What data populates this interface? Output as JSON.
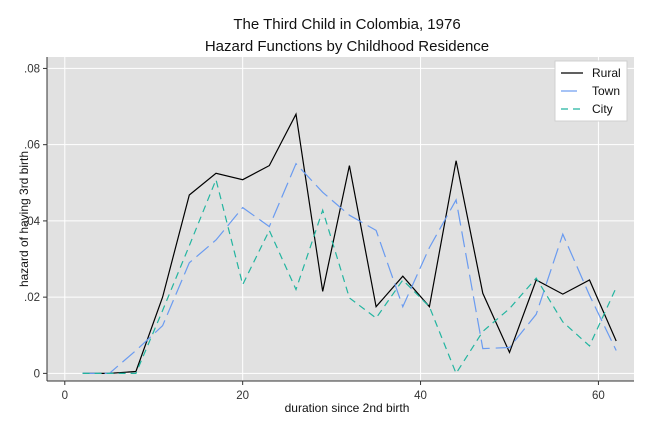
{
  "chart_data": {
    "type": "line",
    "title": "The Third Child in Colombia, 1976",
    "subtitle": "Hazard Functions by Childhood Residence",
    "xlabel": "duration since 2nd birth",
    "ylabel": "hazard of having 3rd birth",
    "xlim": [
      -2,
      64
    ],
    "ylim": [
      -0.002,
      0.083
    ],
    "xticks": [
      0,
      20,
      40,
      60
    ],
    "xtick_labels": [
      "0",
      "20",
      "40",
      "60"
    ],
    "yticks": [
      0,
      0.02,
      0.04,
      0.06,
      0.08
    ],
    "ytick_labels": [
      "0",
      ".02",
      ".04",
      ".06",
      ".08"
    ],
    "grid": true,
    "legend_position": "top-right",
    "series": [
      {
        "name": "Rural",
        "color": "#000000",
        "dash": "solid",
        "x": [
          2,
          5,
          8,
          11,
          14,
          17,
          20,
          23,
          26,
          29,
          32,
          35,
          38,
          41,
          44,
          47,
          50,
          53,
          56,
          59,
          62
        ],
        "y": [
          0,
          0,
          0.0005,
          0.02,
          0.0468,
          0.0525,
          0.0508,
          0.0545,
          0.068,
          0.0215,
          0.0545,
          0.0175,
          0.0255,
          0.0175,
          0.0558,
          0.021,
          0.0055,
          0.0245,
          0.0208,
          0.0245,
          0.0085
        ]
      },
      {
        "name": "Town",
        "color": "#6a9bf0",
        "dash": "longdash",
        "x": [
          2,
          5,
          8,
          11,
          14,
          17,
          20,
          23,
          26,
          29,
          32,
          35,
          38,
          41,
          44,
          47,
          50,
          53,
          56,
          59,
          62
        ],
        "y": [
          0,
          0,
          0.006,
          0.0125,
          0.029,
          0.035,
          0.0435,
          0.0385,
          0.055,
          0.0475,
          0.0415,
          0.0375,
          0.0175,
          0.033,
          0.0455,
          0.0065,
          0.0068,
          0.0155,
          0.0365,
          0.0205,
          0.006
        ]
      },
      {
        "name": "City",
        "color": "#23b5a0",
        "dash": "dash",
        "x": [
          2,
          5,
          8,
          11,
          14,
          17,
          20,
          23,
          26,
          29,
          32,
          35,
          38,
          41,
          44,
          47,
          50,
          53,
          56,
          59,
          62
        ],
        "y": [
          0,
          0,
          0,
          0.0165,
          0.0335,
          0.0508,
          0.0233,
          0.0375,
          0.022,
          0.0428,
          0.0198,
          0.0145,
          0.0245,
          0.0175,
          0,
          0.011,
          0.017,
          0.025,
          0.0135,
          0.0072,
          0.0225
        ]
      }
    ]
  },
  "colors": {
    "plot_background": "#e1e1e1",
    "grid": "#ffffff",
    "page_background": "#ffffff"
  }
}
